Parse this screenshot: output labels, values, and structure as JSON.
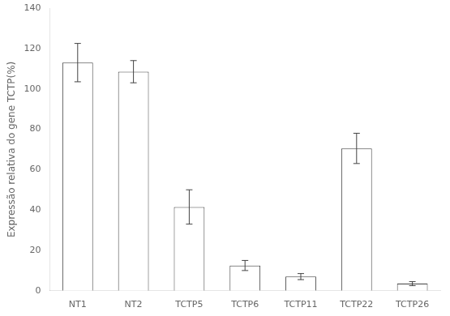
{
  "chart_data": {
    "type": "bar",
    "ylabel": "Expressão relativa do gene TCTP(%)",
    "categories": [
      "NT1",
      "NT2",
      "TCTP5",
      "TCTP6",
      "TCTP11",
      "TCTP22",
      "TCTP26"
    ],
    "values": [
      113.0,
      108.5,
      41.5,
      12.5,
      7.0,
      70.5,
      3.5
    ],
    "errors": [
      9.5,
      5.5,
      8.5,
      2.5,
      1.5,
      7.5,
      1.0
    ],
    "color": "#ffffff",
    "ylim": [
      0,
      140
    ],
    "yticks": [
      0,
      20,
      40,
      60,
      80,
      100,
      120,
      140
    ],
    "grid": false,
    "legend": false
  }
}
